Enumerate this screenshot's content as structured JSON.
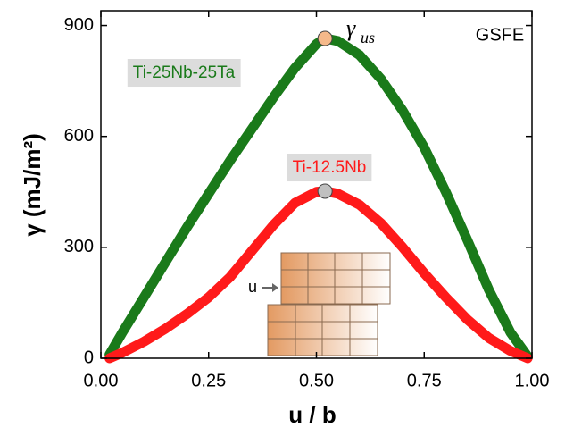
{
  "chart_data": {
    "type": "line",
    "x_label": "u / b",
    "y_label": "γ (mJ/m²)",
    "corner_label": "GSFE",
    "peak_label": {
      "text": "γ",
      "subscript": "us"
    },
    "inset_label": "u",
    "x": [
      0.02,
      0.05,
      0.1,
      0.15,
      0.2,
      0.25,
      0.3,
      0.35,
      0.4,
      0.45,
      0.5,
      0.52,
      0.55,
      0.6,
      0.65,
      0.7,
      0.75,
      0.8,
      0.85,
      0.9,
      0.95,
      0.99
    ],
    "series": [
      {
        "name": "Ti-25Nb-25Ta",
        "color": "#1a7a1a",
        "marker_color": "#f5b98a",
        "values": [
          10,
          70,
          165,
          260,
          355,
          445,
          535,
          620,
          705,
          785,
          850,
          865,
          858,
          820,
          755,
          670,
          570,
          450,
          320,
          185,
          70,
          5
        ]
      },
      {
        "name": "Ti-12.5Nb",
        "color": "#ff1a1a",
        "marker_color": "#c0c0c0",
        "values": [
          0,
          15,
          45,
          80,
          120,
          165,
          220,
          290,
          360,
          420,
          450,
          452,
          445,
          415,
          365,
          300,
          230,
          165,
          105,
          55,
          20,
          0
        ]
      }
    ],
    "xlim": [
      0,
      1
    ],
    "ylim": [
      0,
      940
    ],
    "xticks": [
      {
        "value": 0,
        "label": "0.00"
      },
      {
        "value": 0.25,
        "label": "0.25"
      },
      {
        "value": 0.5,
        "label": "0.50"
      },
      {
        "value": 0.75,
        "label": "0.75"
      },
      {
        "value": 1,
        "label": "1.00"
      }
    ],
    "yticks": [
      0,
      300,
      600,
      900
    ],
    "grid": false
  }
}
